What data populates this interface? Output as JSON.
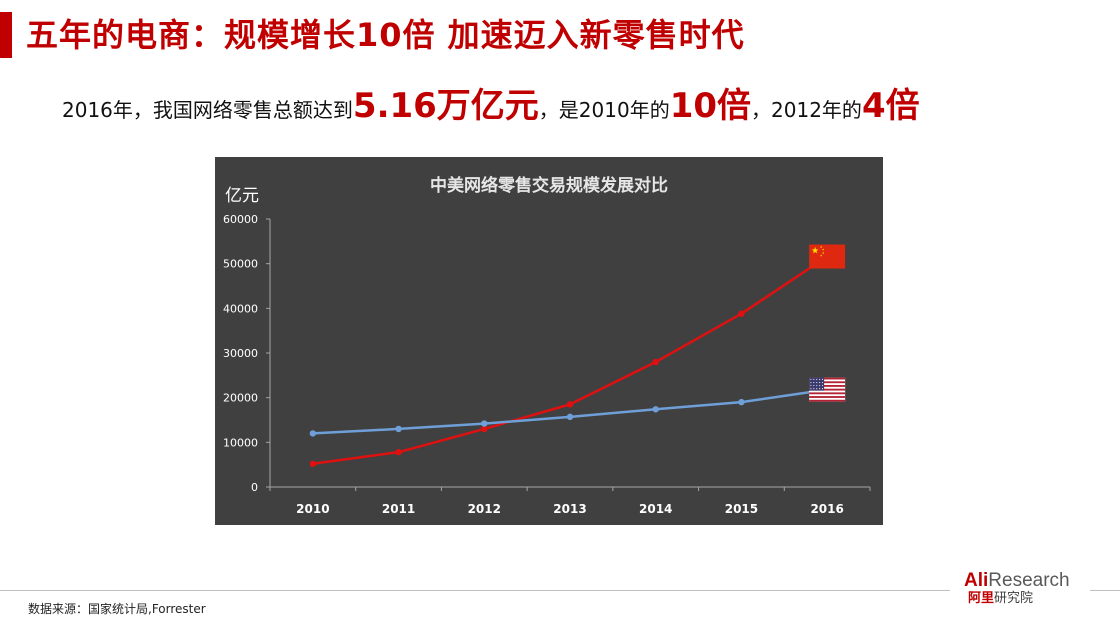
{
  "header": {
    "title": "五年的电商：规模增长10倍  加速迈入新零售时代"
  },
  "subtitle": {
    "part1": "2016年，我国网络零售总额达到",
    "highlight1": "5.16万亿元",
    "part2": "，是2010年的",
    "highlight2": "10倍",
    "part3": "，2012年的",
    "highlight3": "4倍"
  },
  "chart_data": {
    "type": "line",
    "title": "中美网络零售交易规模发展对比",
    "ylabel": "亿元",
    "xlabel": "",
    "categories": [
      "2010",
      "2011",
      "2012",
      "2013",
      "2014",
      "2015",
      "2016"
    ],
    "ylim": [
      0,
      60000
    ],
    "yticks": [
      0,
      10000,
      20000,
      30000,
      40000,
      50000,
      60000
    ],
    "grid": false,
    "series": [
      {
        "key": "cn",
        "color": "#e01010",
        "flag": "china-flag-icon",
        "values": [
          5200,
          7800,
          13000,
          18500,
          28000,
          38800,
          51600
        ]
      },
      {
        "key": "us",
        "color": "#6f9fd8",
        "flag": "us-flag-icon",
        "values": [
          12000,
          13000,
          14200,
          15700,
          17400,
          19000,
          21800
        ]
      }
    ]
  },
  "colors": {
    "accent": "#c00000",
    "chart_bg": "#404040"
  },
  "footer": {
    "source": "数据来源：国家统计局,Forrester",
    "logo_ali": "Ali",
    "logo_research": "Research",
    "logo_cn1": "阿里",
    "logo_cn2": "研究院"
  }
}
